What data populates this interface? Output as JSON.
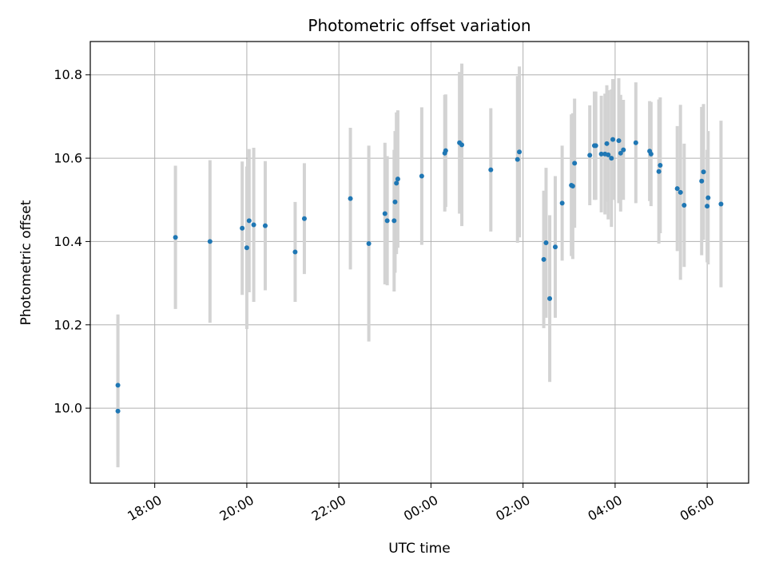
{
  "chart_data": {
    "type": "scatter",
    "title": "Photometric offset variation",
    "xlabel": "UTC time",
    "ylabel": "Photometric offset",
    "grid": true,
    "x_unit": "hours since 00:00 UTC",
    "xlim": [
      -7.4,
      6.9
    ],
    "ylim": [
      9.82,
      10.88
    ],
    "yticks": [
      10.0,
      10.2,
      10.4,
      10.6,
      10.8
    ],
    "ytick_labels": [
      "10.0",
      "10.2",
      "10.4",
      "10.6",
      "10.8"
    ],
    "xticks": [
      -6,
      -4,
      -2,
      0,
      2,
      4,
      6
    ],
    "xtick_labels": [
      "18:00",
      "20:00",
      "22:00",
      "00:00",
      "02:00",
      "04:00",
      "06:00"
    ],
    "colors": {
      "point": "#1f77b4",
      "errorbar": "#d3d3d3",
      "grid": "#b0b0b0",
      "axis": "#000000"
    },
    "points": [
      {
        "x": -6.8,
        "y": 10.055,
        "err": 0.17
      },
      {
        "x": -6.8,
        "y": 9.993,
        "err": 0.135
      },
      {
        "x": -5.55,
        "y": 10.41,
        "err": 0.172
      },
      {
        "x": -4.8,
        "y": 10.4,
        "err": 0.195
      },
      {
        "x": -4.1,
        "y": 10.432,
        "err": 0.16
      },
      {
        "x": -4.0,
        "y": 10.385,
        "err": 0.195
      },
      {
        "x": -3.95,
        "y": 10.45,
        "err": 0.172
      },
      {
        "x": -3.85,
        "y": 10.44,
        "err": 0.185
      },
      {
        "x": -3.6,
        "y": 10.438,
        "err": 0.155
      },
      {
        "x": -2.95,
        "y": 10.375,
        "err": 0.12
      },
      {
        "x": -2.75,
        "y": 10.455,
        "err": 0.133
      },
      {
        "x": -1.75,
        "y": 10.503,
        "err": 0.17
      },
      {
        "x": -1.35,
        "y": 10.395,
        "err": 0.235
      },
      {
        "x": -1.0,
        "y": 10.467,
        "err": 0.17
      },
      {
        "x": -0.95,
        "y": 10.45,
        "err": 0.155
      },
      {
        "x": -0.8,
        "y": 10.45,
        "err": 0.17
      },
      {
        "x": -0.78,
        "y": 10.495,
        "err": 0.17
      },
      {
        "x": -0.75,
        "y": 10.54,
        "err": 0.17
      },
      {
        "x": -0.72,
        "y": 10.55,
        "err": 0.165
      },
      {
        "x": -0.2,
        "y": 10.557,
        "err": 0.165
      },
      {
        "x": 0.3,
        "y": 10.612,
        "err": 0.14
      },
      {
        "x": 0.32,
        "y": 10.618,
        "err": 0.135
      },
      {
        "x": 0.62,
        "y": 10.637,
        "err": 0.17
      },
      {
        "x": 0.67,
        "y": 10.632,
        "err": 0.195
      },
      {
        "x": 1.3,
        "y": 10.572,
        "err": 0.148
      },
      {
        "x": 1.88,
        "y": 10.597,
        "err": 0.2
      },
      {
        "x": 1.92,
        "y": 10.615,
        "err": 0.205
      },
      {
        "x": 2.45,
        "y": 10.357,
        "err": 0.165
      },
      {
        "x": 2.5,
        "y": 10.397,
        "err": 0.18
      },
      {
        "x": 2.58,
        "y": 10.263,
        "err": 0.2
      },
      {
        "x": 2.7,
        "y": 10.387,
        "err": 0.17
      },
      {
        "x": 2.85,
        "y": 10.492,
        "err": 0.138
      },
      {
        "x": 3.05,
        "y": 10.535,
        "err": 0.17
      },
      {
        "x": 3.08,
        "y": 10.533,
        "err": 0.175
      },
      {
        "x": 3.12,
        "y": 10.588,
        "err": 0.155
      },
      {
        "x": 3.45,
        "y": 10.607,
        "err": 0.12
      },
      {
        "x": 3.55,
        "y": 10.63,
        "err": 0.13
      },
      {
        "x": 3.58,
        "y": 10.63,
        "err": 0.13
      },
      {
        "x": 3.7,
        "y": 10.61,
        "err": 0.14
      },
      {
        "x": 3.78,
        "y": 10.61,
        "err": 0.145
      },
      {
        "x": 3.85,
        "y": 10.608,
        "err": 0.155
      },
      {
        "x": 3.82,
        "y": 10.635,
        "err": 0.14
      },
      {
        "x": 3.92,
        "y": 10.6,
        "err": 0.165
      },
      {
        "x": 3.95,
        "y": 10.645,
        "err": 0.145
      },
      {
        "x": 4.08,
        "y": 10.642,
        "err": 0.15
      },
      {
        "x": 4.12,
        "y": 10.612,
        "err": 0.14
      },
      {
        "x": 4.18,
        "y": 10.62,
        "err": 0.12
      },
      {
        "x": 4.45,
        "y": 10.637,
        "err": 0.145
      },
      {
        "x": 4.75,
        "y": 10.617,
        "err": 0.12
      },
      {
        "x": 4.78,
        "y": 10.61,
        "err": 0.125
      },
      {
        "x": 4.95,
        "y": 10.568,
        "err": 0.173
      },
      {
        "x": 4.98,
        "y": 10.583,
        "err": 0.163
      },
      {
        "x": 5.35,
        "y": 10.527,
        "err": 0.15
      },
      {
        "x": 5.42,
        "y": 10.518,
        "err": 0.21
      },
      {
        "x": 5.5,
        "y": 10.487,
        "err": 0.148
      },
      {
        "x": 5.88,
        "y": 10.545,
        "err": 0.178
      },
      {
        "x": 5.92,
        "y": 10.567,
        "err": 0.163
      },
      {
        "x": 6.0,
        "y": 10.485,
        "err": 0.135
      },
      {
        "x": 6.02,
        "y": 10.505,
        "err": 0.16
      },
      {
        "x": 6.3,
        "y": 10.49,
        "err": 0.2
      }
    ]
  }
}
